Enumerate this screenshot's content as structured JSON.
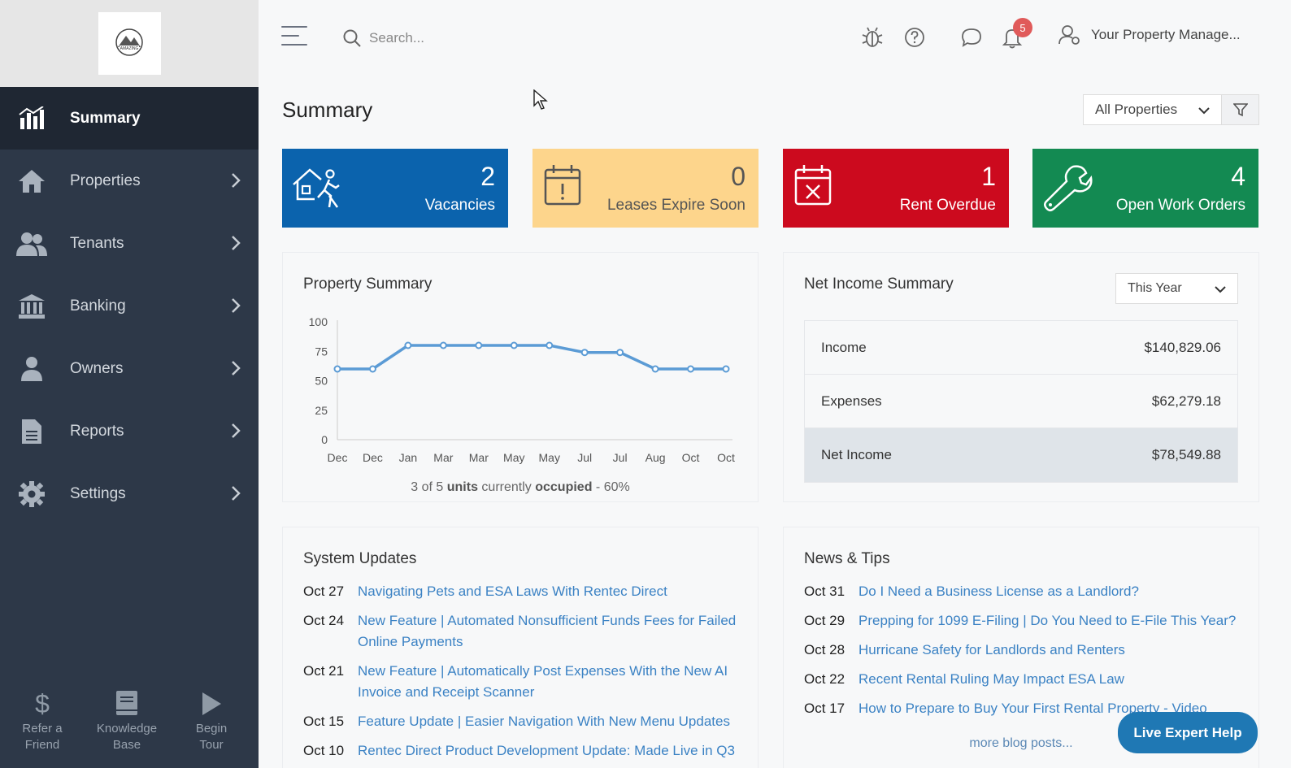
{
  "logo": {
    "alt": "AMAZING"
  },
  "sidebar": {
    "items": [
      {
        "label": "Summary",
        "icon": "chart-icon",
        "active": true
      },
      {
        "label": "Properties",
        "icon": "home-icon"
      },
      {
        "label": "Tenants",
        "icon": "users-icon"
      },
      {
        "label": "Banking",
        "icon": "bank-icon"
      },
      {
        "label": "Owners",
        "icon": "user-icon"
      },
      {
        "label": "Reports",
        "icon": "document-icon"
      },
      {
        "label": "Settings",
        "icon": "gear-icon"
      }
    ],
    "bottom": [
      {
        "line1": "Refer a",
        "line2": "Friend",
        "icon": "dollar-icon"
      },
      {
        "line1": "Knowledge",
        "line2": "Base",
        "icon": "book-icon"
      },
      {
        "line1": "Begin",
        "line2": "Tour",
        "icon": "play-icon"
      }
    ]
  },
  "topbar": {
    "search_placeholder": "Search...",
    "notification_count": "5",
    "user_label": "Your Property Manage..."
  },
  "main": {
    "title": "Summary",
    "property_filter": "All Properties"
  },
  "stats": [
    {
      "value": "2",
      "label": "Vacancies",
      "color": "#0b63ad"
    },
    {
      "value": "0",
      "label": "Leases Expire Soon",
      "color": "#fdd58c"
    },
    {
      "value": "1",
      "label": "Rent Overdue",
      "color": "#cc0a1e"
    },
    {
      "value": "4",
      "label": "Open Work Orders",
      "color": "#138a52"
    }
  ],
  "property_summary": {
    "title": "Property Summary",
    "occupancy_prefix": "3 of 5",
    "occupancy_units": "units",
    "occupancy_mid": "currently",
    "occupancy_word": "occupied",
    "occupancy_suffix": "- 60%"
  },
  "chart_data": {
    "type": "line",
    "categories": [
      "Dec",
      "Dec",
      "Jan",
      "Mar",
      "Mar",
      "May",
      "May",
      "Jul",
      "Jul",
      "Aug",
      "Oct",
      "Oct"
    ],
    "values": [
      60,
      60,
      80,
      80,
      80,
      80,
      80,
      74,
      74,
      60,
      60,
      60
    ],
    "ylim": [
      0,
      100
    ],
    "yticks": [
      0,
      25,
      50,
      75,
      100
    ],
    "color": "#5b9bd5"
  },
  "net_income": {
    "title": "Net Income Summary",
    "period": "This Year",
    "rows": [
      {
        "label": "Income",
        "value": "$140,829.06"
      },
      {
        "label": "Expenses",
        "value": "$62,279.18"
      },
      {
        "label": "Net Income",
        "value": "$78,549.88"
      }
    ]
  },
  "system_updates": {
    "title": "System Updates",
    "items": [
      {
        "date": "Oct 27",
        "text": "Navigating Pets and ESA Laws With Rentec Direct"
      },
      {
        "date": "Oct 24",
        "text": "New Feature | Automated Nonsufficient Funds Fees for Failed Online Payments"
      },
      {
        "date": "Oct 21",
        "text": "New Feature | Automatically Post Expenses With the New AI Invoice and Receipt Scanner"
      },
      {
        "date": "Oct 15",
        "text": "Feature Update | Easier Navigation With New Menu Updates"
      },
      {
        "date": "Oct 10",
        "text": "Rentec Direct Product Development Update: Made Live in Q3"
      }
    ]
  },
  "news": {
    "title": "News & Tips",
    "items": [
      {
        "date": "Oct 31",
        "text": "Do I Need a Business License as a Landlord?"
      },
      {
        "date": "Oct 29",
        "text": "Prepping for 1099 E-Filing | Do You Need to E-File This Year?"
      },
      {
        "date": "Oct 28",
        "text": "Hurricane Safety for Landlords and Renters"
      },
      {
        "date": "Oct 22",
        "text": "Recent Rental Ruling May Impact ESA Law"
      },
      {
        "date": "Oct 17",
        "text": "How to Prepare to Buy Your First Rental Property - Video"
      }
    ],
    "more": "more blog posts..."
  },
  "live_help": "Live Expert Help"
}
